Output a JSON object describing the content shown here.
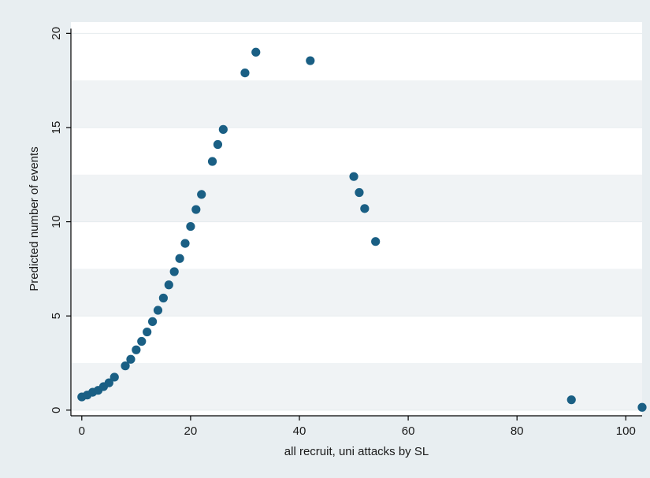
{
  "chart_data": {
    "type": "scatter",
    "title": "",
    "xlabel": "all recruit, uni attacks by SL",
    "ylabel": "Predicted number of events",
    "xlim": [
      -2,
      103
    ],
    "ylim": [
      -0.3,
      20.6
    ],
    "xticks": [
      0,
      20,
      40,
      60,
      80,
      100
    ],
    "yticks": [
      0,
      5,
      10,
      15,
      20
    ],
    "grid": "horizontal",
    "legend": "none",
    "colors": {
      "background": "#e8eef1",
      "plot_area": "#ffffff",
      "grid_band": "#f0f3f5",
      "marker": "#1a5f84",
      "axis": "#000000"
    },
    "series": [
      {
        "x": [
          0,
          1,
          2,
          3,
          4,
          5,
          6,
          8,
          9,
          10,
          11,
          12,
          13,
          14,
          15,
          16,
          17,
          18,
          19,
          20,
          21,
          22,
          24,
          25,
          26,
          30,
          32,
          42,
          50,
          51,
          52,
          54,
          90,
          103
        ],
        "y": [
          0.7,
          0.8,
          0.95,
          1.05,
          1.25,
          1.45,
          1.75,
          2.35,
          2.7,
          3.2,
          3.65,
          4.15,
          4.7,
          5.3,
          5.95,
          6.65,
          7.35,
          8.05,
          8.85,
          9.75,
          10.65,
          11.45,
          13.2,
          14.1,
          14.9,
          17.9,
          19.0,
          18.55,
          12.4,
          11.55,
          10.7,
          8.95,
          0.55,
          0.15
        ]
      }
    ]
  }
}
